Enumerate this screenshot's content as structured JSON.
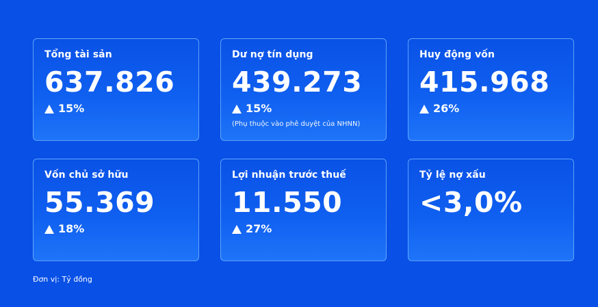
{
  "cards": [
    {
      "label": "Tổng tài sản",
      "value": "637.826",
      "change": "15%"
    },
    {
      "label": "Dư nợ tín dụng",
      "value": "439.273",
      "change": "15%",
      "note": "(Phụ thuộc vào phê duyệt của NHNN)"
    },
    {
      "label": "Huy động vốn",
      "value": "415.968",
      "change": "26%"
    },
    {
      "label": "Vốn chủ sở hữu",
      "value": "55.369",
      "change": "18%"
    },
    {
      "label": "Lợi nhuận trước thuế",
      "value": "11.550",
      "change": "27%"
    },
    {
      "label": "Tỷ lệ nợ xấu",
      "value": "<3,0%"
    }
  ],
  "unit_text": "Đơn vị: Tỷ đồng",
  "colors": {
    "background": "#0950e6",
    "card_border": "#78b9ff",
    "text": "#ffffff"
  },
  "icons": {
    "change_indicator": "triangle-up-icon"
  }
}
